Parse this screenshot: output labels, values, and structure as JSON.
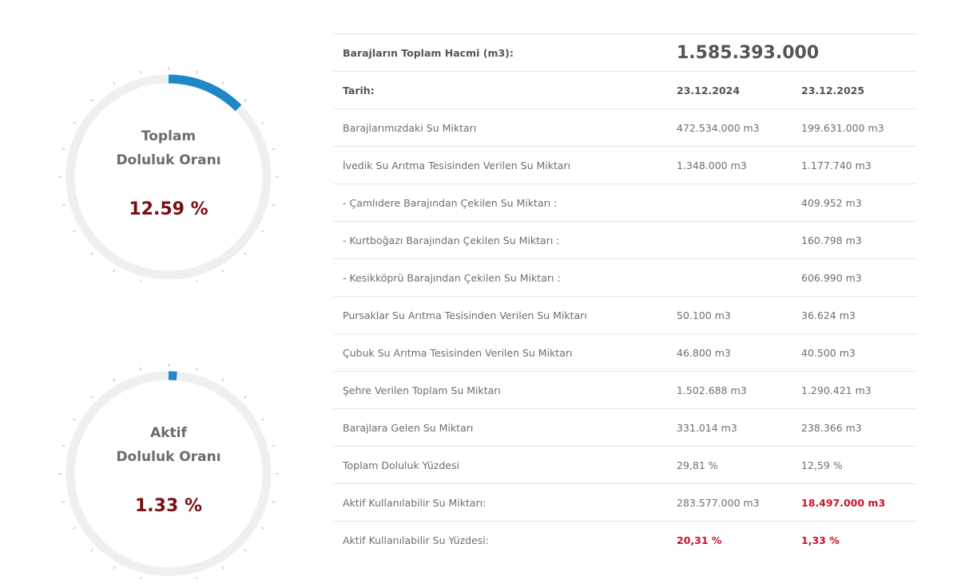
{
  "gauges": [
    {
      "title_line1": "Toplam",
      "title_line2": "Doluluk Oranı",
      "value_text": "12.59 %",
      "fraction": 0.1259
    },
    {
      "title_line1": "Aktif",
      "title_line2": "Doluluk Oranı",
      "value_text": "1.33 %",
      "fraction": 0.0133
    }
  ],
  "colors": {
    "gauge_fill": "#1e88c8",
    "gauge_track": "#efefef",
    "value_text": "#7a0f13",
    "highlight": "#c9122a"
  },
  "table": {
    "volume_label": "Barajların Toplam Hacmi (m3):",
    "volume_value": "1.585.393.000",
    "date_label": "Tarih:",
    "date1": "23.12.2024",
    "date2": "23.12.2025",
    "rows": [
      {
        "label": "Barajlarımızdaki Su Miktarı",
        "v1": "472.534.000 m3",
        "v2": "199.631.000 m3"
      },
      {
        "label": "İvedik Su Arıtma Tesisinden Verilen Su Miktarı",
        "v1": "1.348.000 m3",
        "v2": "1.177.740 m3"
      },
      {
        "label": "- Çamlıdere Barajından Çekilen Su Miktarı :",
        "v1": "",
        "v2": "409.952 m3"
      },
      {
        "label": "- Kurtboğazı Barajından Çekilen Su Miktarı :",
        "v1": "",
        "v2": "160.798 m3"
      },
      {
        "label": "- Kesikköprü Barajından Çekilen Su Miktarı :",
        "v1": "",
        "v2": "606.990 m3"
      },
      {
        "label": "Pursaklar Su Arıtma Tesisinden Verilen Su Miktarı",
        "v1": "50.100 m3",
        "v2": "36.624 m3"
      },
      {
        "label": "Çubuk Su Arıtma Tesisinden Verilen Su Miktarı",
        "v1": "46.800 m3",
        "v2": "40.500 m3"
      },
      {
        "label": "Şehre Verilen Toplam Su Miktarı",
        "v1": "1.502.688 m3",
        "v2": "1.290.421 m3"
      },
      {
        "label": "Barajlara Gelen Su Miktarı",
        "v1": "331.014 m3",
        "v2": "238.366 m3"
      },
      {
        "label": "Toplam Doluluk Yüzdesi",
        "v1": "29,81 %",
        "v2": "12,59 %"
      },
      {
        "label": "Aktif Kullanılabilir Su Miktarı:",
        "v1": "283.577.000 m3",
        "v2": "18.497.000 m3"
      },
      {
        "label": "Aktif Kullanılabilir Su Yüzdesi:",
        "v1": "20,31 %",
        "v2": "1,33 %"
      }
    ]
  }
}
